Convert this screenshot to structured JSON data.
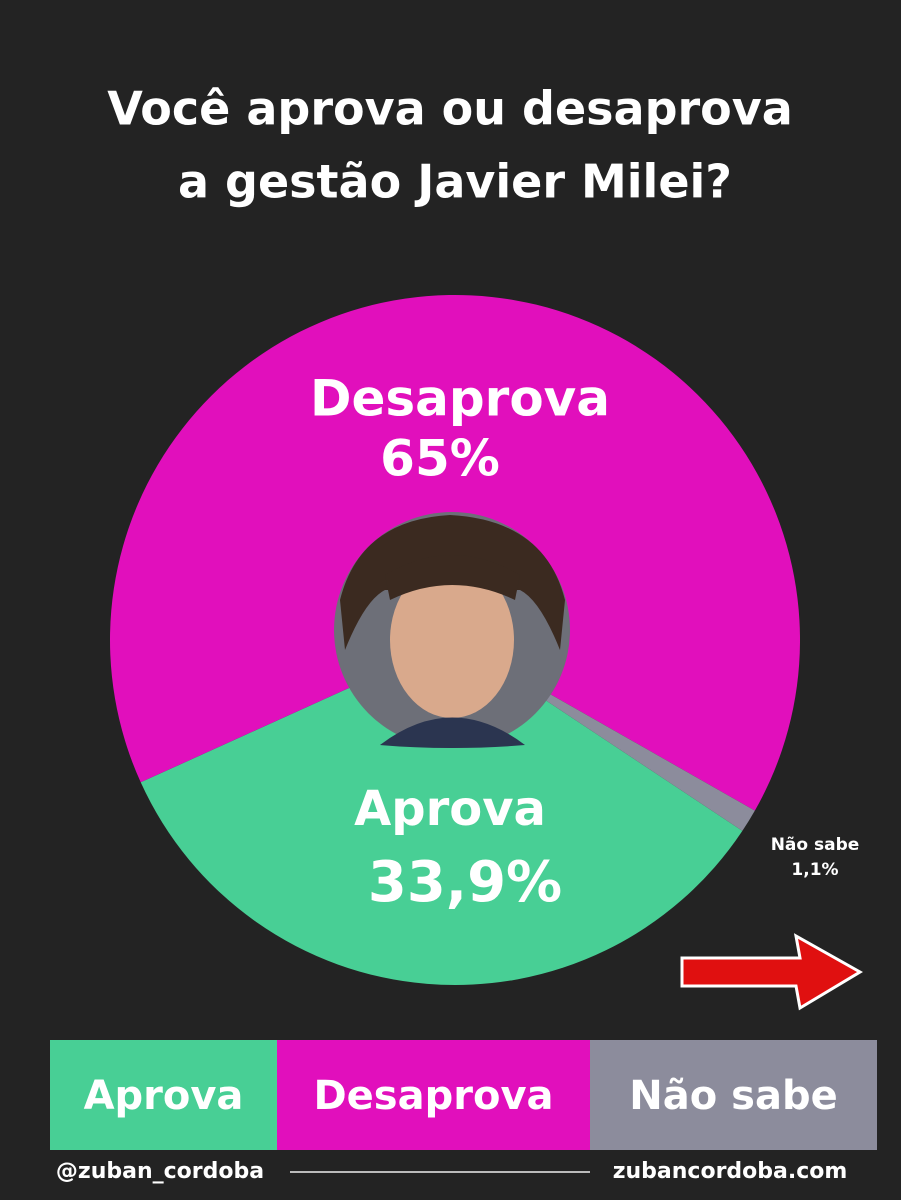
{
  "chart_data": {
    "type": "pie",
    "title": "Você aprova ou desaprova",
    "subtitle": "a gestão Javier Milei?",
    "categories": [
      "Aprova",
      "Desaprova",
      "Não sabe"
    ],
    "values": [
      33.9,
      65,
      1.1
    ],
    "value_labels": [
      "33,9%",
      "65%",
      "1,1%"
    ],
    "colors": [
      "#48cf95",
      "#e10fbc",
      "#8c8c9c"
    ],
    "footer_left": "@zuban_cordoba",
    "footer_right": "zubancordoba.com"
  }
}
